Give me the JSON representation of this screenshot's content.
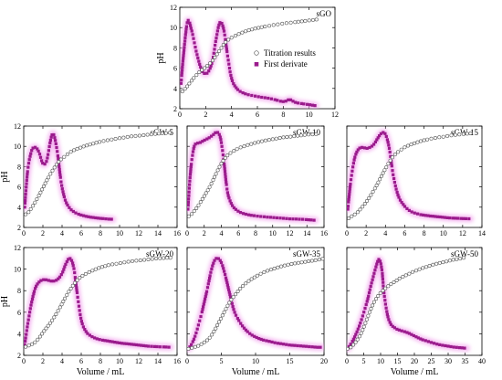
{
  "colors": {
    "titration_marker_stroke": "#555555",
    "derivative_marker_fill": "#9a1b8c",
    "derivative_glow": "#f3a8ee",
    "axis": "#000000"
  },
  "chart_data": [
    {
      "type": "scatter",
      "title": "sGO",
      "xlabel": "",
      "ylabel": "pH",
      "xlim": [
        0,
        12
      ],
      "ylim": [
        2,
        12
      ],
      "xticks": [
        "0",
        "2",
        "4",
        "6",
        "8",
        "10",
        "12"
      ],
      "yticks": [
        "2",
        "4",
        "6",
        "8",
        "10",
        "12"
      ],
      "legend": {
        "position": "center",
        "entries": [
          {
            "label": "Titration results",
            "marker": "open-circle"
          },
          {
            "label": "First derivate",
            "marker": "filled-square"
          }
        ]
      },
      "series": [
        {
          "name": "Titration results",
          "x": [
            0.2,
            0.5,
            1,
            1.5,
            2,
            2.5,
            3,
            3.5,
            4,
            5,
            6,
            7,
            8,
            9,
            10,
            10.6
          ],
          "y": [
            3.7,
            4.1,
            4.9,
            5.6,
            6.1,
            6.7,
            7.6,
            8.5,
            9.0,
            9.6,
            9.95,
            10.2,
            10.4,
            10.55,
            10.7,
            10.8
          ]
        },
        {
          "name": "First derivate",
          "x": [
            0.1,
            0.3,
            0.6,
            0.9,
            1.3,
            1.7,
            2.1,
            2.5,
            2.8,
            3.1,
            3.4,
            3.7,
            4.0,
            4.4,
            5,
            6,
            7,
            8,
            8.5,
            9,
            10,
            10.5
          ],
          "y": [
            4.5,
            7.5,
            10.6,
            9.8,
            7.5,
            5.8,
            5.5,
            6.6,
            8.8,
            10.5,
            9.8,
            7.2,
            5.0,
            4.0,
            3.5,
            3.2,
            3.0,
            2.7,
            2.9,
            2.6,
            2.4,
            2.3
          ]
        }
      ]
    },
    {
      "type": "scatter",
      "title": "sGW-5",
      "xlabel": "",
      "ylabel": "pH",
      "xlim": [
        0,
        16
      ],
      "ylim": [
        2,
        12
      ],
      "xticks": [
        "0",
        "2",
        "4",
        "6",
        "8",
        "10",
        "12",
        "14",
        "16"
      ],
      "yticks": [
        "2",
        "4",
        "6",
        "8",
        "10",
        "12"
      ],
      "series": [
        {
          "name": "Titration results",
          "x": [
            0.2,
            0.5,
            1,
            1.5,
            2,
            2.5,
            3,
            3.5,
            4,
            5,
            6,
            7,
            8,
            9,
            10,
            11,
            12,
            13,
            14,
            15.3
          ],
          "y": [
            3.3,
            3.5,
            4.2,
            5.0,
            5.9,
            6.8,
            7.6,
            8.3,
            8.8,
            9.5,
            9.9,
            10.2,
            10.45,
            10.65,
            10.8,
            10.95,
            11.05,
            11.15,
            11.25,
            11.35
          ]
        },
        {
          "name": "First derivate",
          "x": [
            0.1,
            0.4,
            0.8,
            1.2,
            1.6,
            2.0,
            2.4,
            2.8,
            3.1,
            3.5,
            3.9,
            4.3,
            4.8,
            5.5,
            6.5,
            7.5,
            8.5,
            9.3
          ],
          "y": [
            4.0,
            7.5,
            9.5,
            9.9,
            9.4,
            8.3,
            8.6,
            10.6,
            11.2,
            9.5,
            6.5,
            4.8,
            3.9,
            3.4,
            3.1,
            2.95,
            2.85,
            2.8
          ]
        }
      ]
    },
    {
      "type": "scatter",
      "title": "sGW-10",
      "xlabel": "",
      "ylabel": "",
      "xlim": [
        0,
        16
      ],
      "ylim": [
        2,
        12
      ],
      "xticks": [
        "0",
        "2",
        "4",
        "6",
        "8",
        "10",
        "12",
        "14",
        "16"
      ],
      "yticks": [],
      "series": [
        {
          "name": "Titration results",
          "x": [
            0.2,
            0.5,
            1,
            1.5,
            2,
            2.5,
            3,
            3.5,
            4,
            4.5,
            5,
            6,
            7,
            8,
            9,
            10,
            11,
            12,
            13,
            14,
            15.2
          ],
          "y": [
            3.1,
            3.3,
            3.8,
            4.4,
            5.1,
            5.8,
            6.6,
            7.5,
            8.3,
            8.9,
            9.3,
            9.8,
            10.1,
            10.35,
            10.55,
            10.7,
            10.85,
            10.95,
            11.05,
            11.15,
            11.2
          ]
        },
        {
          "name": "First derivate",
          "x": [
            0.1,
            0.4,
            0.8,
            1.2,
            1.6,
            2.0,
            2.5,
            3.0,
            3.5,
            3.9,
            4.3,
            4.7,
            5.2,
            5.8,
            6.5,
            7.5,
            9,
            10.5,
            12,
            13.5,
            15
          ],
          "y": [
            3.8,
            7.5,
            9.9,
            10.3,
            10.4,
            10.6,
            10.8,
            11.1,
            11.4,
            10.8,
            8.5,
            5.6,
            4.3,
            3.7,
            3.4,
            3.2,
            3.05,
            2.95,
            2.85,
            2.8,
            2.7
          ]
        }
      ]
    },
    {
      "type": "scatter",
      "title": "sGW-15",
      "xlabel": "",
      "ylabel": "",
      "xlim": [
        0,
        14
      ],
      "ylim": [
        2,
        12
      ],
      "xticks": [
        "0",
        "2",
        "4",
        "6",
        "8",
        "10",
        "12",
        "14"
      ],
      "yticks": [],
      "series": [
        {
          "name": "Titration results",
          "x": [
            0.2,
            0.5,
            1,
            1.5,
            2,
            2.5,
            3,
            3.5,
            4,
            4.5,
            5,
            6,
            7,
            8,
            9,
            10,
            11,
            12,
            13
          ],
          "y": [
            2.9,
            3.1,
            3.4,
            3.9,
            4.5,
            5.2,
            6.0,
            6.9,
            7.8,
            8.6,
            9.2,
            9.9,
            10.3,
            10.6,
            10.8,
            10.95,
            11.1,
            11.2,
            11.3
          ]
        },
        {
          "name": "First derivate",
          "x": [
            0.1,
            0.4,
            0.8,
            1.2,
            1.6,
            2.0,
            2.4,
            2.8,
            3.2,
            3.6,
            4.0,
            4.4,
            4.8,
            5.3,
            5.9,
            6.6,
            7.5,
            8.5,
            9.5,
            10.5,
            11.5,
            12.8
          ],
          "y": [
            3.8,
            6.5,
            8.8,
            9.7,
            9.9,
            9.8,
            9.9,
            10.2,
            10.8,
            11.3,
            11.2,
            9.8,
            7.2,
            5.2,
            4.2,
            3.6,
            3.3,
            3.15,
            3.05,
            2.95,
            2.9,
            2.85
          ]
        }
      ]
    },
    {
      "type": "scatter",
      "title": "sGW-20",
      "xlabel": "Volume / mL",
      "ylabel": "pH",
      "xlim": [
        0,
        16
      ],
      "ylim": [
        2,
        12
      ],
      "xticks": [
        "0",
        "2",
        "4",
        "6",
        "8",
        "10",
        "12",
        "14",
        "16"
      ],
      "yticks": [
        "2",
        "4",
        "6",
        "8",
        "10",
        "12"
      ],
      "series": [
        {
          "name": "Titration results",
          "x": [
            0.2,
            0.5,
            1,
            1.5,
            2,
            2.5,
            3,
            3.5,
            4,
            4.5,
            5,
            5.5,
            6,
            7,
            8,
            9,
            10,
            11,
            12,
            13,
            14,
            15.3
          ],
          "y": [
            2.8,
            2.9,
            3.1,
            3.5,
            4.1,
            4.7,
            5.3,
            6.0,
            6.8,
            7.6,
            8.3,
            8.9,
            9.3,
            9.8,
            10.15,
            10.4,
            10.55,
            10.7,
            10.8,
            10.9,
            11.0,
            11.05
          ]
        },
        {
          "name": "First derivate",
          "x": [
            0.1,
            0.4,
            0.8,
            1.2,
            1.6,
            2.0,
            2.4,
            2.8,
            3.2,
            3.6,
            4.0,
            4.4,
            4.8,
            5.2,
            5.6,
            6.0,
            6.5,
            7.2,
            8,
            9,
            10,
            11,
            12,
            13,
            14,
            15.3
          ],
          "y": [
            3.0,
            4.8,
            6.8,
            8.2,
            8.8,
            9.0,
            9.0,
            8.9,
            8.9,
            9.1,
            9.6,
            10.5,
            11.0,
            10.2,
            7.6,
            5.3,
            4.2,
            3.7,
            3.45,
            3.3,
            3.15,
            3.05,
            2.95,
            2.85,
            2.8,
            2.75
          ]
        }
      ]
    },
    {
      "type": "scatter",
      "title": "sGW-35",
      "xlabel": "Volume / mL",
      "ylabel": "",
      "xlim": [
        0,
        20
      ],
      "ylim": [
        2,
        12
      ],
      "xticks": [
        "0",
        "5",
        "10",
        "15",
        "20"
      ],
      "yticks": [],
      "series": [
        {
          "name": "Titration results",
          "x": [
            0.2,
            0.5,
            1,
            1.5,
            2,
            2.5,
            3,
            3.5,
            4,
            4.5,
            5,
            5.5,
            6,
            6.5,
            7,
            7.5,
            8,
            9,
            10,
            11,
            12,
            13,
            14,
            15,
            16,
            17,
            18,
            19,
            19.8
          ],
          "y": [
            2.6,
            2.65,
            2.75,
            2.85,
            3.0,
            3.2,
            3.45,
            3.8,
            4.3,
            4.9,
            5.5,
            6.1,
            6.7,
            7.2,
            7.6,
            8.0,
            8.35,
            8.9,
            9.3,
            9.65,
            9.9,
            10.1,
            10.3,
            10.45,
            10.55,
            10.65,
            10.75,
            10.85,
            10.95
          ]
        },
        {
          "name": "First derivate",
          "x": [
            0.2,
            1,
            2,
            3,
            3.5,
            4,
            4.5,
            5,
            5.5,
            6,
            6.5,
            7,
            8,
            9,
            10,
            11,
            12,
            13,
            14,
            15,
            16,
            17,
            18,
            19,
            19.8
          ],
          "y": [
            2.6,
            3.5,
            5.6,
            8.3,
            9.8,
            10.8,
            11.0,
            10.6,
            9.6,
            8.3,
            7.0,
            5.9,
            4.8,
            4.1,
            3.7,
            3.45,
            3.3,
            3.15,
            3.05,
            2.95,
            2.9,
            2.85,
            2.8,
            2.75,
            2.75
          ]
        }
      ]
    },
    {
      "type": "scatter",
      "title": "sGW-50",
      "xlabel": "Volume / mL",
      "ylabel": "",
      "xlim": [
        0,
        40
      ],
      "ylim": [
        2,
        12
      ],
      "xticks": [
        "0",
        "5",
        "10",
        "15",
        "20",
        "25",
        "30",
        "35",
        "40"
      ],
      "yticks": [],
      "series": [
        {
          "name": "Titration results",
          "x": [
            0.2,
            1,
            2,
            3,
            4,
            5,
            6,
            7,
            8,
            9,
            10,
            11,
            12,
            13,
            14,
            15,
            16,
            18,
            20,
            22,
            24,
            26,
            28,
            30,
            32,
            34,
            35.5
          ],
          "y": [
            2.6,
            2.7,
            3.0,
            3.4,
            3.9,
            4.6,
            5.4,
            6.2,
            6.9,
            7.4,
            7.8,
            8.1,
            8.35,
            8.6,
            8.8,
            9.0,
            9.2,
            9.5,
            9.8,
            10.05,
            10.25,
            10.45,
            10.6,
            10.75,
            10.9,
            11.0,
            11.15
          ]
        },
        {
          "name": "First derivate",
          "x": [
            0.2,
            2,
            4,
            6,
            7,
            8,
            9,
            9.5,
            10,
            10.5,
            11,
            12,
            13,
            14,
            15,
            16,
            18,
            20,
            22,
            24,
            26,
            28,
            30,
            32,
            34,
            35.5
          ],
          "y": [
            2.6,
            3.5,
            5.0,
            7.0,
            8.3,
            9.5,
            10.6,
            10.9,
            10.6,
            9.6,
            7.8,
            5.8,
            4.9,
            4.6,
            4.4,
            4.3,
            4.1,
            3.8,
            3.5,
            3.3,
            3.1,
            2.95,
            2.85,
            2.75,
            2.7,
            2.65
          ]
        }
      ]
    }
  ]
}
